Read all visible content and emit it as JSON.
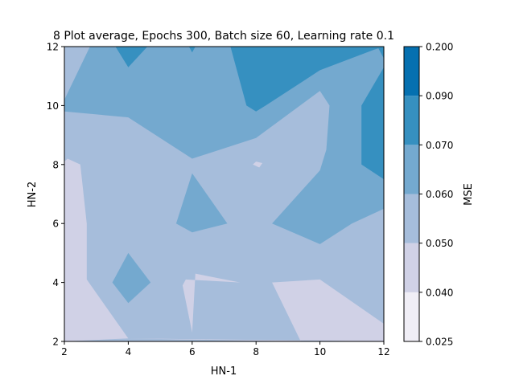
{
  "chart_data": {
    "type": "contour",
    "title": "8 Plot average, Epochs 300, Batch size 60, Learning rate 0.1",
    "xlabel": "HN-1",
    "ylabel": "HN-2",
    "colorbar_label": "MSE",
    "xlim": [
      2,
      12
    ],
    "ylim": [
      2,
      12
    ],
    "x_ticks": [
      "2",
      "4",
      "6",
      "8",
      "10",
      "12"
    ],
    "y_ticks": [
      "2",
      "4",
      "6",
      "8",
      "10",
      "12"
    ],
    "levels": [
      {
        "range": [
          0.025,
          0.04
        ],
        "color": "#f0eef6"
      },
      {
        "range": [
          0.04,
          0.05
        ],
        "color": "#d0d1e6"
      },
      {
        "range": [
          0.05,
          0.06
        ],
        "color": "#a6bddb"
      },
      {
        "range": [
          0.06,
          0.07
        ],
        "color": "#74a9cf"
      },
      {
        "range": [
          0.07,
          0.09
        ],
        "color": "#3690c0"
      },
      {
        "range": [
          0.09,
          0.2
        ],
        "color": "#0570b0"
      }
    ],
    "colorbar_ticks": [
      "0.025",
      "0.040",
      "0.050",
      "0.060",
      "0.070",
      "0.090",
      "0.200"
    ],
    "regions": [
      {
        "level": 2,
        "points": [
          [
            2,
            2
          ],
          [
            12,
            2
          ],
          [
            12,
            12
          ],
          [
            2,
            12
          ]
        ]
      },
      {
        "level": 3,
        "points": [
          [
            2.8,
            12
          ],
          [
            12,
            12
          ],
          [
            12,
            6.5
          ],
          [
            11,
            6
          ],
          [
            10,
            5.3
          ],
          [
            8.5,
            6
          ],
          [
            10,
            7.8
          ],
          [
            10.2,
            8.5
          ],
          [
            10.3,
            10
          ],
          [
            10,
            10.5
          ],
          [
            8,
            8.9
          ],
          [
            6,
            8.2
          ],
          [
            4,
            9.6
          ],
          [
            2,
            9.8
          ],
          [
            2,
            10.2
          ]
        ]
      },
      {
        "level": 3,
        "points": [
          [
            6,
            7.7
          ],
          [
            7.1,
            6
          ],
          [
            6,
            5.7
          ],
          [
            5.5,
            6
          ]
        ]
      },
      {
        "level": 3,
        "points": [
          [
            4,
            5
          ],
          [
            4.7,
            4
          ],
          [
            4,
            3.3
          ],
          [
            3.5,
            4
          ]
        ]
      },
      {
        "level": 4,
        "points": [
          [
            7.2,
            12
          ],
          [
            12,
            12
          ],
          [
            11.7,
            11.9
          ],
          [
            10,
            11.2
          ],
          [
            8.3,
            10
          ],
          [
            8,
            9.8
          ],
          [
            7.7,
            10
          ]
        ]
      },
      {
        "level": 4,
        "points": [
          [
            3.6,
            12
          ],
          [
            4.6,
            12
          ],
          [
            4,
            11.3
          ]
        ]
      },
      {
        "level": 4,
        "points": [
          [
            5.9,
            12
          ],
          [
            6.1,
            12
          ],
          [
            6,
            11.8
          ]
        ]
      },
      {
        "level": 4,
        "points": [
          [
            11.8,
            12
          ],
          [
            12,
            12
          ],
          [
            12,
            11.3
          ],
          [
            11.3,
            10
          ],
          [
            11.3,
            8
          ],
          [
            12,
            7.5
          ],
          [
            12,
            11.6
          ]
        ]
      },
      {
        "level": 1,
        "points": [
          [
            2,
            2
          ],
          [
            4,
            2.1
          ],
          [
            2.7,
            4.1
          ],
          [
            2.7,
            6
          ],
          [
            2.5,
            8
          ],
          [
            2.1,
            8.2
          ],
          [
            2,
            8.1
          ]
        ]
      },
      {
        "level": 1,
        "points": [
          [
            4,
            2.1
          ],
          [
            9.4,
            2
          ],
          [
            8.5,
            4
          ],
          [
            10,
            4.1
          ],
          [
            12,
            2.6
          ],
          [
            12,
            2
          ]
        ]
      },
      {
        "level": 1,
        "points": [
          [
            6,
            2.3
          ],
          [
            6.1,
            4.3
          ],
          [
            7.5,
            4
          ],
          [
            5.8,
            4.1
          ],
          [
            5.7,
            3.9
          ]
        ]
      },
      {
        "level": 1,
        "points": [
          [
            7.9,
            8
          ],
          [
            8.1,
            7.9
          ],
          [
            8.2,
            8.05
          ],
          [
            8,
            8.1
          ]
        ]
      }
    ]
  }
}
